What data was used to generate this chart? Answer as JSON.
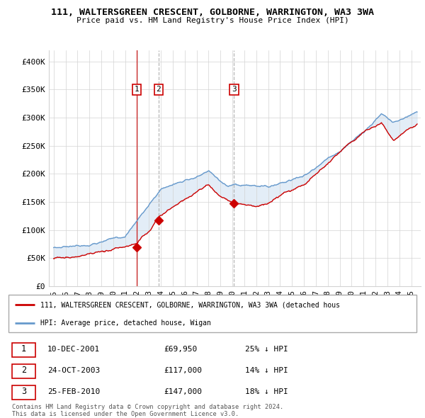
{
  "title1": "111, WALTERSGREEN CRESCENT, GOLBORNE, WARRINGTON, WA3 3WA",
  "title2": "Price paid vs. HM Land Registry's House Price Index (HPI)",
  "ylabel_ticks": [
    "£0",
    "£50K",
    "£100K",
    "£150K",
    "£200K",
    "£250K",
    "£300K",
    "£350K",
    "£400K"
  ],
  "ytick_values": [
    0,
    50000,
    100000,
    150000,
    200000,
    250000,
    300000,
    350000,
    400000
  ],
  "ylim": [
    0,
    420000
  ],
  "hpi_color": "#6699cc",
  "hpi_fill_color": "#dce9f5",
  "price_color": "#cc0000",
  "vline_color_solid": "#cc0000",
  "vline_color_dashed": "#aaaaaa",
  "legend_line1": "111, WALTERSGREEN CRESCENT, GOLBORNE, WARRINGTON, WA3 3WA (detached hous",
  "legend_line2": "HPI: Average price, detached house, Wigan",
  "transactions": [
    {
      "label": "1",
      "date": "10-DEC-2001",
      "price": "£69,950",
      "pct": "25% ↓ HPI",
      "x": 2001.95,
      "vline": "solid"
    },
    {
      "label": "2",
      "date": "24-OCT-2003",
      "price": "£117,000",
      "pct": "14% ↓ HPI",
      "x": 2003.81,
      "vline": "dashed"
    },
    {
      "label": "3",
      "date": "25-FEB-2010",
      "price": "£147,000",
      "pct": "18% ↓ HPI",
      "x": 2010.14,
      "vline": "dashed"
    }
  ],
  "transaction_prices": [
    69950,
    117000,
    147000
  ],
  "footnote1": "Contains HM Land Registry data © Crown copyright and database right 2024.",
  "footnote2": "This data is licensed under the Open Government Licence v3.0.",
  "xlim": [
    1994.6,
    2025.8
  ],
  "xticks": [
    1995,
    1996,
    1997,
    1998,
    1999,
    2000,
    2001,
    2002,
    2003,
    2004,
    2005,
    2006,
    2007,
    2008,
    2009,
    2010,
    2011,
    2012,
    2013,
    2014,
    2015,
    2016,
    2017,
    2018,
    2019,
    2020,
    2021,
    2022,
    2023,
    2024,
    2025
  ]
}
